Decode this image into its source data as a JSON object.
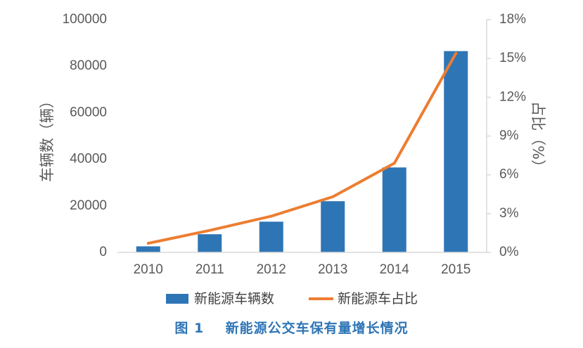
{
  "chart_data": {
    "type": "bar",
    "categories": [
      "2010",
      "2011",
      "2012",
      "2013",
      "2014",
      "2015"
    ],
    "series": [
      {
        "name": "新能源车辆数",
        "type": "bar",
        "axis": "left",
        "values": [
          2600,
          7800,
          13200,
          22000,
          36500,
          86500
        ]
      },
      {
        "name": "新能源车占比",
        "type": "line",
        "axis": "right",
        "values": [
          0.7,
          1.7,
          2.8,
          4.3,
          6.9,
          15.4
        ]
      }
    ],
    "ylabel": "车辆数（辆）",
    "y2label": "占比（%）",
    "ylim": [
      0,
      100000
    ],
    "y2lim": [
      0,
      18
    ],
    "yticks": [
      "0",
      "20000",
      "40000",
      "60000",
      "80000",
      "100000"
    ],
    "y2ticks": [
      "0%",
      "3%",
      "6%",
      "9%",
      "12%",
      "15%",
      "18%"
    ],
    "colors": {
      "bar": "#2e75b6",
      "line": "#ed7d31"
    },
    "grid": false,
    "legend": "bottom"
  },
  "caption": "图 1    新能源公交车保有量增长情况"
}
